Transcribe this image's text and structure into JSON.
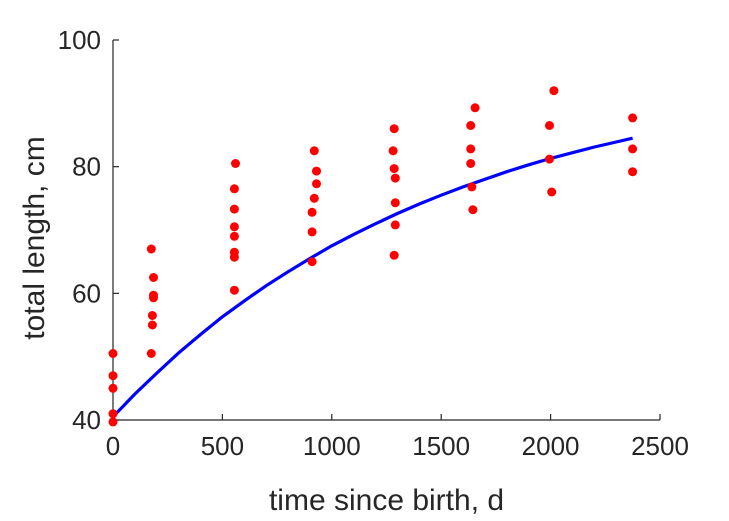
{
  "chart_data": {
    "type": "scatter",
    "title": "",
    "xlabel": "time since birth, d",
    "ylabel": "total length, cm",
    "xlim": [
      0,
      2500
    ],
    "ylim": [
      40,
      100
    ],
    "xticks": [
      0,
      500,
      1000,
      1500,
      2000,
      2500
    ],
    "yticks": [
      40,
      60,
      80,
      100
    ],
    "xtick_labels": [
      "0",
      "500",
      "1000",
      "1500",
      "2000",
      "2500"
    ],
    "ytick_labels": [
      "40",
      "60",
      "80",
      "100"
    ],
    "grid": false,
    "legend": "none",
    "series": [
      {
        "kind": "points",
        "color": "#ff0000",
        "points": [
          [
            0,
            39.7
          ],
          [
            0,
            41
          ],
          [
            0,
            45
          ],
          [
            0,
            47
          ],
          [
            0,
            50.5
          ],
          [
            175,
            50.5
          ],
          [
            180,
            55
          ],
          [
            180,
            56.5
          ],
          [
            185,
            59.3
          ],
          [
            185,
            59.7
          ],
          [
            185,
            62.5
          ],
          [
            175,
            67
          ],
          [
            555,
            60.5
          ],
          [
            555,
            65.7
          ],
          [
            555,
            66.5
          ],
          [
            555,
            69
          ],
          [
            555,
            70.5
          ],
          [
            555,
            73.3
          ],
          [
            555,
            76.5
          ],
          [
            560,
            80.5
          ],
          [
            910,
            65
          ],
          [
            910,
            69.7
          ],
          [
            910,
            72.8
          ],
          [
            920,
            75
          ],
          [
            930,
            77.3
          ],
          [
            930,
            79.3
          ],
          [
            920,
            82.5
          ],
          [
            1285,
            66
          ],
          [
            1290,
            70.8
          ],
          [
            1290,
            74.3
          ],
          [
            1290,
            78.2
          ],
          [
            1285,
            79.7
          ],
          [
            1280,
            82.5
          ],
          [
            1285,
            86
          ],
          [
            1645,
            73.2
          ],
          [
            1640,
            76.8
          ],
          [
            1635,
            80.5
          ],
          [
            1635,
            82.8
          ],
          [
            1635,
            86.5
          ],
          [
            1655,
            89.3
          ],
          [
            2005,
            76
          ],
          [
            1995,
            81.2
          ],
          [
            1995,
            86.5
          ],
          [
            2015,
            92
          ],
          [
            2375,
            79.2
          ],
          [
            2375,
            82.8
          ],
          [
            2375,
            87.7
          ]
        ]
      },
      {
        "kind": "curve",
        "color": "#0000ff",
        "points": [
          [
            0,
            40.5
          ],
          [
            100,
            44.1
          ],
          [
            200,
            47.4
          ],
          [
            300,
            50.6
          ],
          [
            400,
            53.5
          ],
          [
            500,
            56.3
          ],
          [
            600,
            58.8
          ],
          [
            700,
            61.2
          ],
          [
            800,
            63.4
          ],
          [
            900,
            65.5
          ],
          [
            1000,
            67.5
          ],
          [
            1100,
            69.3
          ],
          [
            1200,
            71.0
          ],
          [
            1300,
            72.6
          ],
          [
            1400,
            74.1
          ],
          [
            1500,
            75.5
          ],
          [
            1600,
            76.8
          ],
          [
            1700,
            78.0
          ],
          [
            1800,
            79.2
          ],
          [
            1900,
            80.3
          ],
          [
            2000,
            81.3
          ],
          [
            2100,
            82.2
          ],
          [
            2200,
            83.1
          ],
          [
            2300,
            83.9
          ],
          [
            2375,
            84.5
          ]
        ]
      }
    ]
  }
}
